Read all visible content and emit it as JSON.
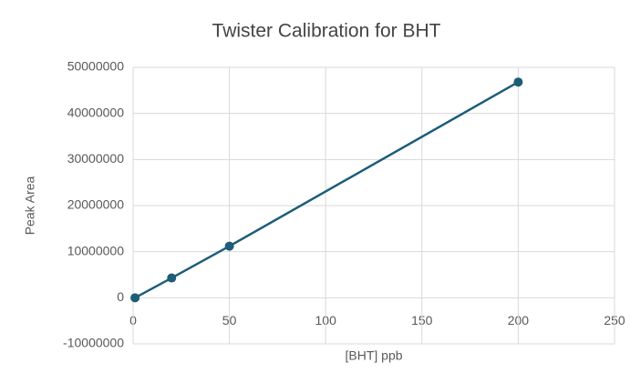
{
  "chart_data": {
    "type": "scatter",
    "title": "Twister Calibration for BHT",
    "x_label": "[BHT] ppb",
    "y_label": "Peak Area",
    "series": [
      {
        "name": "BHT",
        "color": "#1d5d78",
        "x": [
          1,
          20,
          50,
          200
        ],
        "values": [
          0,
          4300000,
          11200000,
          46800000
        ]
      }
    ],
    "xlim": [
      0,
      250
    ],
    "xticks": [
      0,
      50,
      100,
      150,
      200,
      250
    ],
    "ylim": [
      -10000000,
      50000000
    ],
    "yticks": [
      -10000000,
      0,
      10000000,
      20000000,
      30000000,
      40000000,
      50000000
    ],
    "grid": true,
    "connect": true
  }
}
